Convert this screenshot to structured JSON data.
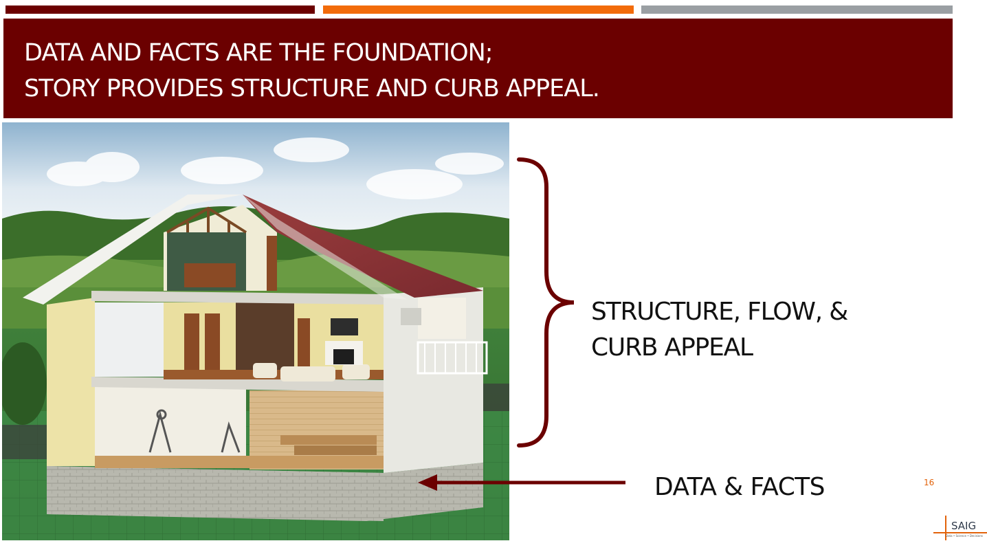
{
  "slide": {
    "title_line_1": "DATA AND FACTS ARE THE FOUNDATION;",
    "title_line_2": "STORY PROVIDES STRUCTURE AND CURB APPEAL.",
    "label_structure_line_1": "STRUCTURE, FLOW, &",
    "label_structure_line_2": "CURB APPEAL",
    "label_data": "DATA & FACTS",
    "page_number": "16"
  },
  "logo": {
    "name": "SAIG",
    "tagline": "Data • Science • Decisions"
  },
  "colors": {
    "maroon": "#6b0000",
    "orange": "#f26b0a",
    "gray": "#9a9fa3"
  }
}
